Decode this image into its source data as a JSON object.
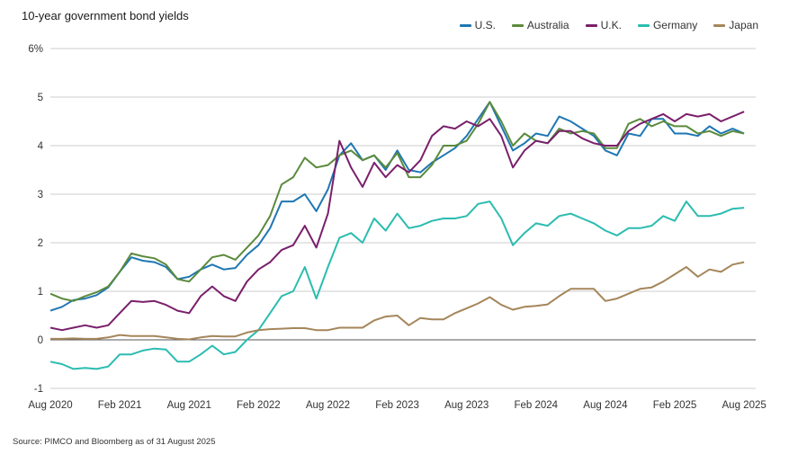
{
  "title": "10-year government bond yields",
  "source": "Source: PIMCO and Bloomberg as of 31 August 2025",
  "chart_data": {
    "type": "line",
    "title": "10-year government bond yields",
    "xlabel": "",
    "ylabel": "",
    "ylim": [
      -1,
      6
    ],
    "xlim": [
      "2020-08",
      "2025-09"
    ],
    "yticks": [
      {
        "value": 6,
        "label": "6%"
      },
      {
        "value": 5,
        "label": "5"
      },
      {
        "value": 4,
        "label": "4"
      },
      {
        "value": 3,
        "label": "3"
      },
      {
        "value": 2,
        "label": "2"
      },
      {
        "value": 1,
        "label": "1"
      },
      {
        "value": 0,
        "label": "0"
      },
      {
        "value": -1,
        "label": "-1"
      }
    ],
    "xticks": [
      {
        "value": "2020-08",
        "label": "Aug 2020"
      },
      {
        "value": "2021-02",
        "label": "Feb 2021"
      },
      {
        "value": "2021-08",
        "label": "Aug 2021"
      },
      {
        "value": "2022-02",
        "label": "Feb 2022"
      },
      {
        "value": "2022-08",
        "label": "Aug 2022"
      },
      {
        "value": "2023-02",
        "label": "Feb 2023"
      },
      {
        "value": "2023-08",
        "label": "Aug 2023"
      },
      {
        "value": "2024-02",
        "label": "Feb 2024"
      },
      {
        "value": "2024-08",
        "label": "Aug 2024"
      },
      {
        "value": "2025-02",
        "label": "Feb 2025"
      },
      {
        "value": "2025-08",
        "label": "Aug 2025"
      }
    ],
    "grid": "horizontal",
    "legend_position": "top-right",
    "x": [
      "2020-08",
      "2020-09",
      "2020-10",
      "2020-11",
      "2020-12",
      "2021-01",
      "2021-02",
      "2021-03",
      "2021-04",
      "2021-05",
      "2021-06",
      "2021-07",
      "2021-08",
      "2021-09",
      "2021-10",
      "2021-11",
      "2021-12",
      "2022-01",
      "2022-02",
      "2022-03",
      "2022-04",
      "2022-05",
      "2022-06",
      "2022-07",
      "2022-08",
      "2022-09",
      "2022-10",
      "2022-11",
      "2022-12",
      "2023-01",
      "2023-02",
      "2023-03",
      "2023-04",
      "2023-05",
      "2023-06",
      "2023-07",
      "2023-08",
      "2023-09",
      "2023-10",
      "2023-11",
      "2023-12",
      "2024-01",
      "2024-02",
      "2024-03",
      "2024-04",
      "2024-05",
      "2024-06",
      "2024-07",
      "2024-08",
      "2024-09",
      "2024-10",
      "2024-11",
      "2024-12",
      "2025-01",
      "2025-02",
      "2025-03",
      "2025-04",
      "2025-05",
      "2025-06",
      "2025-07",
      "2025-08"
    ],
    "series": [
      {
        "name": "U.S.",
        "color": "#1f77b4",
        "values": [
          0.6,
          0.68,
          0.82,
          0.85,
          0.92,
          1.08,
          1.4,
          1.7,
          1.63,
          1.6,
          1.5,
          1.25,
          1.3,
          1.45,
          1.55,
          1.45,
          1.48,
          1.75,
          1.95,
          2.3,
          2.85,
          2.85,
          3.0,
          2.65,
          3.1,
          3.8,
          4.05,
          3.7,
          3.8,
          3.5,
          3.9,
          3.5,
          3.45,
          3.65,
          3.8,
          3.95,
          4.2,
          4.55,
          4.9,
          4.4,
          3.9,
          4.05,
          4.25,
          4.2,
          4.6,
          4.5,
          4.35,
          4.2,
          3.9,
          3.8,
          4.25,
          4.2,
          4.55,
          4.55,
          4.25,
          4.25,
          4.2,
          4.4,
          4.25,
          4.35,
          4.25
        ]
      },
      {
        "name": "Australia",
        "color": "#5b8a3c",
        "values": [
          0.95,
          0.85,
          0.8,
          0.9,
          0.98,
          1.1,
          1.4,
          1.78,
          1.72,
          1.68,
          1.55,
          1.25,
          1.2,
          1.45,
          1.7,
          1.75,
          1.65,
          1.9,
          2.15,
          2.55,
          3.2,
          3.35,
          3.75,
          3.55,
          3.6,
          3.8,
          3.9,
          3.7,
          3.8,
          3.55,
          3.85,
          3.35,
          3.35,
          3.6,
          4.0,
          4.0,
          4.1,
          4.45,
          4.9,
          4.5,
          4.0,
          4.25,
          4.1,
          4.05,
          4.35,
          4.25,
          4.3,
          4.25,
          3.95,
          3.95,
          4.45,
          4.55,
          4.4,
          4.5,
          4.4,
          4.4,
          4.25,
          4.3,
          4.2,
          4.3,
          4.25
        ]
      },
      {
        "name": "U.K.",
        "color": "#7a1f6b",
        "values": [
          0.25,
          0.2,
          0.25,
          0.3,
          0.25,
          0.3,
          0.55,
          0.8,
          0.78,
          0.8,
          0.72,
          0.6,
          0.55,
          0.9,
          1.1,
          0.9,
          0.8,
          1.2,
          1.45,
          1.6,
          1.85,
          1.95,
          2.35,
          1.9,
          2.6,
          4.1,
          3.55,
          3.15,
          3.65,
          3.35,
          3.6,
          3.45,
          3.7,
          4.2,
          4.4,
          4.35,
          4.5,
          4.4,
          4.55,
          4.2,
          3.55,
          3.9,
          4.1,
          4.05,
          4.3,
          4.3,
          4.15,
          4.05,
          4.0,
          4.0,
          4.3,
          4.45,
          4.55,
          4.65,
          4.5,
          4.65,
          4.6,
          4.65,
          4.5,
          4.6,
          4.7
        ]
      },
      {
        "name": "Germany",
        "color": "#2bbcb0",
        "values": [
          -0.45,
          -0.5,
          -0.6,
          -0.58,
          -0.6,
          -0.55,
          -0.3,
          -0.3,
          -0.22,
          -0.18,
          -0.2,
          -0.45,
          -0.45,
          -0.3,
          -0.12,
          -0.3,
          -0.25,
          0.0,
          0.2,
          0.55,
          0.9,
          1.0,
          1.5,
          0.85,
          1.5,
          2.1,
          2.2,
          2.0,
          2.5,
          2.25,
          2.6,
          2.3,
          2.35,
          2.45,
          2.5,
          2.5,
          2.55,
          2.8,
          2.85,
          2.5,
          1.95,
          2.2,
          2.4,
          2.35,
          2.55,
          2.6,
          2.5,
          2.4,
          2.25,
          2.15,
          2.3,
          2.3,
          2.35,
          2.55,
          2.45,
          2.85,
          2.55,
          2.55,
          2.6,
          2.7,
          2.72
        ]
      },
      {
        "name": "Japan",
        "color": "#a5865a",
        "values": [
          0.02,
          0.02,
          0.03,
          0.02,
          0.02,
          0.05,
          0.1,
          0.08,
          0.08,
          0.08,
          0.05,
          0.02,
          0.01,
          0.05,
          0.08,
          0.07,
          0.07,
          0.15,
          0.2,
          0.22,
          0.23,
          0.24,
          0.24,
          0.2,
          0.2,
          0.25,
          0.25,
          0.25,
          0.4,
          0.48,
          0.5,
          0.3,
          0.45,
          0.42,
          0.42,
          0.55,
          0.65,
          0.75,
          0.88,
          0.72,
          0.62,
          0.68,
          0.7,
          0.73,
          0.9,
          1.05,
          1.05,
          1.05,
          0.8,
          0.85,
          0.95,
          1.05,
          1.08,
          1.2,
          1.35,
          1.5,
          1.3,
          1.45,
          1.4,
          1.55,
          1.6
        ]
      }
    ]
  }
}
